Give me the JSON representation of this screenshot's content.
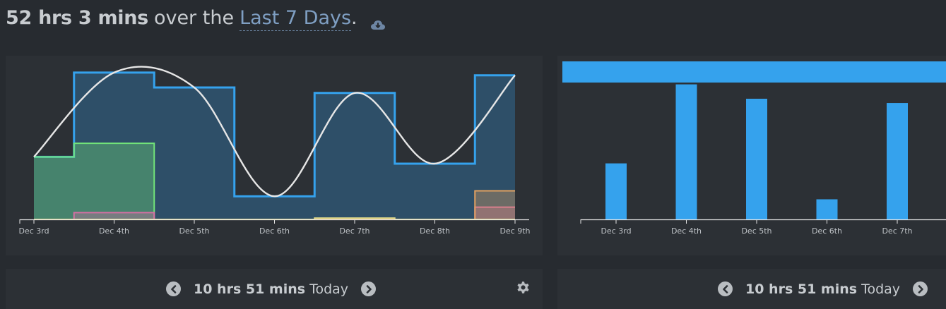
{
  "header": {
    "total": "52 hrs 3 mins",
    "middle_text": "over the",
    "range_label": "Last 7 Days",
    "trailing": ".",
    "download_icon": "cloud-download-icon"
  },
  "colors": {
    "background": "#272b30",
    "panel": "#2c3035",
    "accent_blue": "#35a2ed",
    "green": "#72e479",
    "line_white": "#e6e6e6"
  },
  "chart_data": [
    {
      "type": "area",
      "step": true,
      "categories": [
        "Dec 3rd",
        "Dec 4th",
        "Dec 5th",
        "Dec 6th",
        "Dec 7th",
        "Dec 8th",
        "Dec 9th"
      ],
      "xlabel": "",
      "ylabel": "",
      "ylim": [
        0,
        11
      ],
      "series": [
        {
          "color": "#35a2ed",
          "values": [
            4.6,
            10.8,
            9.7,
            1.7,
            9.3,
            4.1,
            10.6
          ]
        },
        {
          "color": "#72e479",
          "values": [
            4.6,
            5.6,
            0,
            0,
            0,
            0,
            0
          ]
        },
        {
          "color": "#d46fa3",
          "values": [
            0,
            0.5,
            0,
            0,
            0,
            0,
            0.9
          ]
        },
        {
          "color": "#e0a060",
          "values": [
            0,
            0,
            0,
            0,
            0,
            0,
            2.1
          ]
        },
        {
          "color": "#e0d98a",
          "values": [
            0,
            0,
            0,
            0,
            0.1,
            0,
            0
          ]
        }
      ],
      "trend_line": {
        "color": "#e6e6e6",
        "smooth": true
      }
    },
    {
      "type": "bar",
      "categories": [
        "Dec 3rd",
        "Dec 4th",
        "Dec 5th",
        "Dec 6th",
        "Dec 7th"
      ],
      "values": [
        3.9,
        9.4,
        8.4,
        1.4,
        8.1
      ],
      "ylim": [
        0,
        11
      ],
      "color": "#35a2ed",
      "top_bar_color": "#35a2ed"
    }
  ],
  "footer_left": {
    "total": "10 hrs 51 mins",
    "label": "Today",
    "prev_icon": "chevron-left-icon",
    "next_icon": "chevron-right-icon",
    "settings_icon": "gear-icon"
  },
  "footer_right": {
    "total": "10 hrs 51 mins",
    "label": "Today",
    "prev_icon": "chevron-left-icon",
    "next_icon": "chevron-right-icon"
  }
}
